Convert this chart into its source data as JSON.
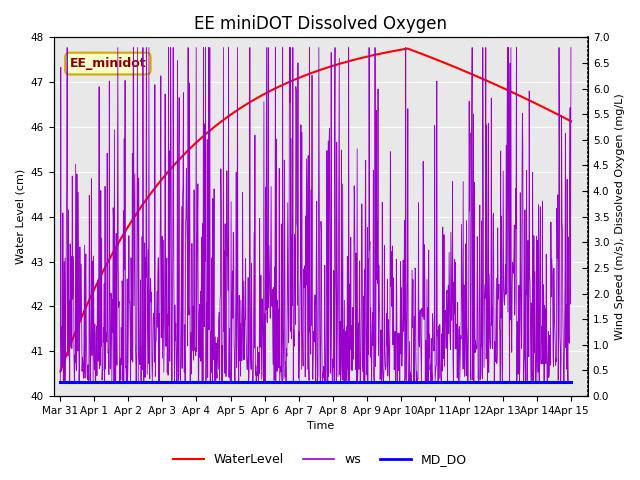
{
  "title": "EE miniDOT Dissolved Oxygen",
  "xlabel": "Time",
  "ylabel_left": "Water Level (cm)",
  "ylabel_right": "Wind Speed (m/s), Dissolved Oxygen (mg/L)",
  "legend_label": "EE_minidot",
  "series_labels": [
    "WaterLevel",
    "ws",
    "MD_DO"
  ],
  "series_colors": [
    "red",
    "#9900cc",
    "blue"
  ],
  "xlim_days": [
    -0.2,
    15.5
  ],
  "ylim_left": [
    40.0,
    48.0
  ],
  "ylim_right": [
    0.0,
    7.0
  ],
  "yticks_left": [
    40.0,
    41.0,
    42.0,
    43.0,
    44.0,
    45.0,
    46.0,
    47.0,
    48.0
  ],
  "yticks_right": [
    0.0,
    0.5,
    1.0,
    1.5,
    2.0,
    2.5,
    3.0,
    3.5,
    4.0,
    4.5,
    5.0,
    5.5,
    6.0,
    6.5,
    7.0
  ],
  "background_color": "#e8e8e8",
  "fig_background": "#ffffff",
  "title_fontsize": 12,
  "axis_fontsize": 8,
  "tick_fontsize": 7.5,
  "legend_box_facecolor": "#ffffcc",
  "legend_box_edgecolor": "#ccaa00",
  "legend_label_color": "#880000"
}
